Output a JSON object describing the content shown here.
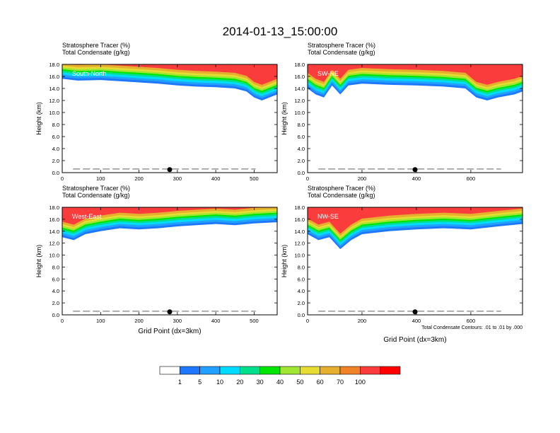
{
  "figure_title": "2014-01-13_15:00:00",
  "colorbar": {
    "colors": [
      "#ffffff",
      "#1e78ff",
      "#21a0ff",
      "#00dcff",
      "#00e08c",
      "#00e600",
      "#a0e632",
      "#e6dc32",
      "#e6af2d",
      "#f08228",
      "#fa3c3c",
      "#ff0000"
    ],
    "labels": [
      "1",
      "5",
      "10",
      "20",
      "30",
      "40",
      "50",
      "60",
      "70",
      "100"
    ]
  },
  "chart_data": [
    {
      "type": "contour",
      "panel": "South-North",
      "title_line1": "Stratosphere Tracer   (%)",
      "title_line2": "Total Condensate   (g/kg)",
      "label": "South-North",
      "ylabel": "Height (km)",
      "xlabel": "",
      "yticks": [
        "0.0",
        "2.0",
        "4.0",
        "6.0",
        "8.0",
        "10.0",
        "12.0",
        "14.0",
        "16.0",
        "18.0"
      ],
      "ylim": [
        0,
        18
      ],
      "xticks": [
        "0",
        "100",
        "200",
        "300",
        "400",
        "500"
      ],
      "xlim": [
        0,
        560
      ],
      "marker_x": 280,
      "tropopause_km": [
        [
          0,
          15.6
        ],
        [
          40,
          15.3
        ],
        [
          100,
          15.4
        ],
        [
          150,
          15.2
        ],
        [
          200,
          15.0
        ],
        [
          250,
          14.8
        ],
        [
          300,
          14.5
        ],
        [
          350,
          14.3
        ],
        [
          400,
          14.2
        ],
        [
          450,
          14.0
        ],
        [
          480,
          13.5
        ],
        [
          500,
          12.5
        ],
        [
          520,
          12.0
        ],
        [
          560,
          13.0
        ]
      ],
      "note": ""
    },
    {
      "type": "contour",
      "panel": "SW-NE",
      "title_line1": "Stratosphere Tracer   (%)",
      "title_line2": "Total Condensate   (g/kg)",
      "label": "SW-NE",
      "ylabel": "Height (km)",
      "xlabel": "",
      "yticks": [
        "0.0",
        "2.0",
        "4.0",
        "6.0",
        "8.0",
        "10.0",
        "12.0",
        "14.0",
        "16.0",
        "18.0"
      ],
      "ylim": [
        0,
        18
      ],
      "xticks": [
        "0",
        "200",
        "400",
        "600"
      ],
      "xlim": [
        0,
        790
      ],
      "marker_x": 395,
      "tropopause_km": [
        [
          0,
          14.0
        ],
        [
          30,
          13.0
        ],
        [
          60,
          12.5
        ],
        [
          90,
          14.5
        ],
        [
          120,
          13.0
        ],
        [
          150,
          14.5
        ],
        [
          200,
          14.8
        ],
        [
          300,
          14.6
        ],
        [
          400,
          14.5
        ],
        [
          500,
          14.3
        ],
        [
          580,
          14.0
        ],
        [
          620,
          12.5
        ],
        [
          660,
          12.0
        ],
        [
          700,
          12.5
        ],
        [
          760,
          13.0
        ],
        [
          790,
          13.5
        ]
      ],
      "note": ""
    },
    {
      "type": "contour",
      "panel": "West-East",
      "title_line1": "Stratosphere Tracer   (%)",
      "title_line2": "Total Condensate   (g/kg)",
      "label": "West-East",
      "ylabel": "Height (km)",
      "xlabel": "Grid Point (dx=3km)",
      "yticks": [
        "0.0",
        "2.0",
        "4.0",
        "6.0",
        "8.0",
        "10.0",
        "12.0",
        "14.0",
        "16.0",
        "18.0"
      ],
      "ylim": [
        0,
        18
      ],
      "xticks": [
        "0",
        "100",
        "200",
        "300",
        "400",
        "500"
      ],
      "xlim": [
        0,
        560
      ],
      "marker_x": 280,
      "tropopause_km": [
        [
          0,
          13.0
        ],
        [
          30,
          12.5
        ],
        [
          60,
          13.5
        ],
        [
          100,
          14.0
        ],
        [
          150,
          14.5
        ],
        [
          200,
          14.3
        ],
        [
          250,
          14.5
        ],
        [
          300,
          14.8
        ],
        [
          350,
          15.0
        ],
        [
          400,
          15.2
        ],
        [
          450,
          15.0
        ],
        [
          500,
          15.3
        ],
        [
          560,
          15.5
        ]
      ],
      "note": ""
    },
    {
      "type": "contour",
      "panel": "NW-SE",
      "title_line1": "Stratosphere Tracer   (%)",
      "title_line2": "Total Condensate   (g/kg)",
      "label": "NW-SE",
      "ylabel": "Height (km)",
      "xlabel": "Grid Point (dx=3km)",
      "yticks": [
        "0.0",
        "2.0",
        "4.0",
        "6.0",
        "8.0",
        "10.0",
        "12.0",
        "14.0",
        "16.0",
        "18.0"
      ],
      "ylim": [
        0,
        18
      ],
      "xticks": [
        "0",
        "200",
        "400",
        "600"
      ],
      "xlim": [
        0,
        790
      ],
      "marker_x": 395,
      "tropopause_km": [
        [
          0,
          13.5
        ],
        [
          40,
          12.5
        ],
        [
          80,
          13.0
        ],
        [
          120,
          11.0
        ],
        [
          160,
          12.5
        ],
        [
          200,
          13.5
        ],
        [
          300,
          14.0
        ],
        [
          400,
          14.3
        ],
        [
          500,
          14.5
        ],
        [
          600,
          14.3
        ],
        [
          700,
          14.8
        ],
        [
          790,
          15.2
        ]
      ],
      "note": "Total Condensate Contours: .01 to .01 by .000"
    }
  ]
}
